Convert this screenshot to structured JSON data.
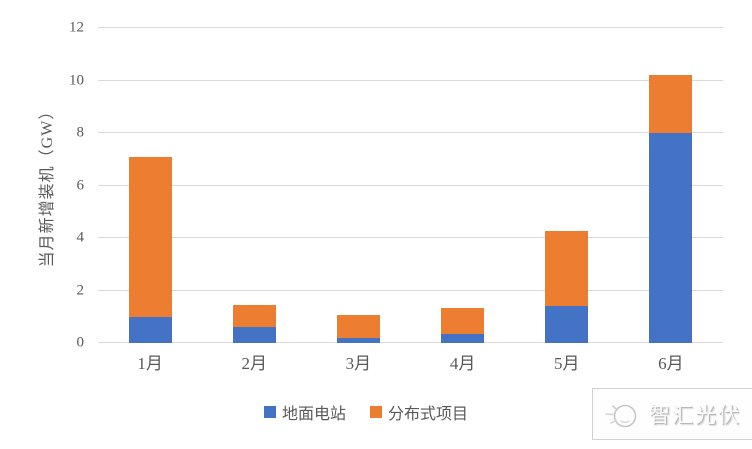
{
  "chart_data": {
    "type": "bar",
    "stacked": true,
    "title": "",
    "xlabel": "",
    "ylabel": "当月新增装机（GW）",
    "categories": [
      "1月",
      "2月",
      "3月",
      "4月",
      "5月",
      "6月"
    ],
    "series": [
      {
        "name": "地面电站",
        "color": "#4472C4",
        "values": [
          1.0,
          0.6,
          0.2,
          0.35,
          1.4,
          8.0
        ]
      },
      {
        "name": "分布式项目",
        "color": "#ED7D31",
        "values": [
          6.1,
          0.85,
          0.85,
          1.0,
          2.85,
          2.2
        ]
      }
    ],
    "stack_totals": [
      7.1,
      1.45,
      1.05,
      1.35,
      4.25,
      10.2
    ],
    "ylim": [
      0,
      12
    ],
    "yticks": [
      0,
      2,
      4,
      6,
      8,
      10,
      12
    ],
    "grid": true,
    "legend_position": "bottom"
  },
  "colors": {
    "grid": "#d9d9d9",
    "axis_text": "#595959",
    "background": "#ffffff",
    "series_blue": "#4472C4",
    "series_orange": "#ED7D31"
  },
  "watermark": {
    "text": "智汇光伏",
    "icon": "sun-sketch-icon"
  }
}
